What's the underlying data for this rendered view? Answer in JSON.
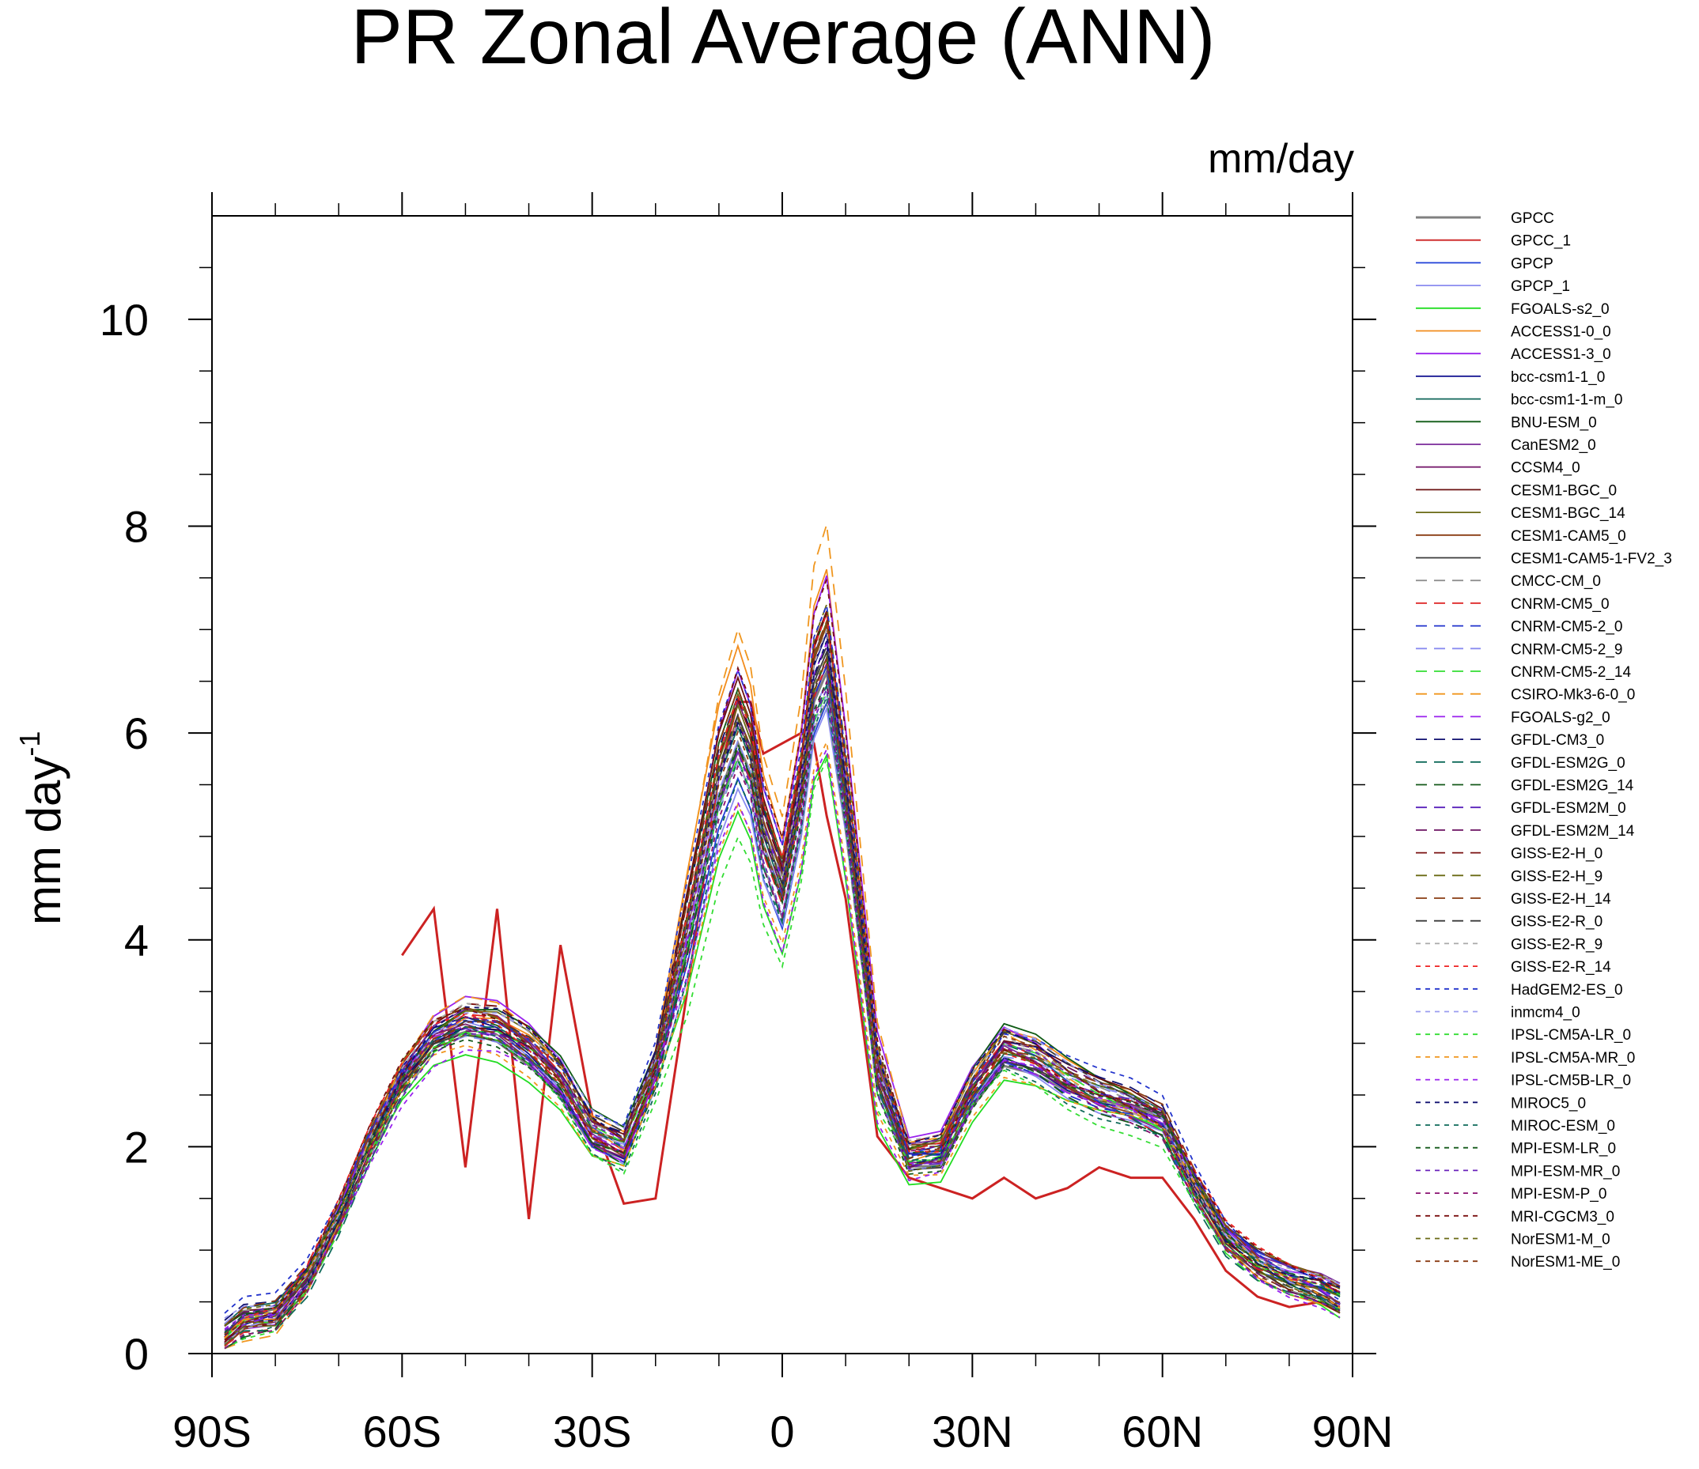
{
  "chart_data": {
    "type": "line",
    "title": "PR Zonal Average (ANN)",
    "units": "mm/day",
    "ylabel": "mm day",
    "ylabel_exponent": "-1",
    "xlabel": "",
    "xlim": [
      -90,
      90
    ],
    "ylim": [
      0,
      11
    ],
    "x_ticks": [
      {
        "value": -90,
        "label": "90S"
      },
      {
        "value": -60,
        "label": "60S"
      },
      {
        "value": -30,
        "label": "30S"
      },
      {
        "value": 0,
        "label": "0"
      },
      {
        "value": 30,
        "label": "30N"
      },
      {
        "value": 60,
        "label": "60N"
      },
      {
        "value": 90,
        "label": "90N"
      }
    ],
    "y_ticks": [
      {
        "value": 0,
        "label": "0"
      },
      {
        "value": 2,
        "label": "2"
      },
      {
        "value": 4,
        "label": "4"
      },
      {
        "value": 6,
        "label": "6"
      },
      {
        "value": 8,
        "label": "8"
      },
      {
        "value": 10,
        "label": "10"
      }
    ],
    "x": [
      -88,
      -85,
      -80,
      -75,
      -70,
      -65,
      -60,
      -55,
      -50,
      -45,
      -40,
      -35,
      -30,
      -25,
      -20,
      -15,
      -10,
      -7,
      -5,
      -3,
      0,
      3,
      5,
      7,
      10,
      15,
      20,
      25,
      30,
      35,
      40,
      45,
      50,
      55,
      60,
      65,
      70,
      75,
      80,
      85,
      88
    ],
    "base_series": [
      0.15,
      0.3,
      0.35,
      0.7,
      1.3,
      2.0,
      2.6,
      3.0,
      3.15,
      3.1,
      2.9,
      2.6,
      2.1,
      1.95,
      2.7,
      3.9,
      5.3,
      5.8,
      5.5,
      4.8,
      4.3,
      5.2,
      6.2,
      6.5,
      5.2,
      2.6,
      1.85,
      1.9,
      2.5,
      2.9,
      2.8,
      2.6,
      2.45,
      2.35,
      2.2,
      1.6,
      1.1,
      0.85,
      0.7,
      0.6,
      0.5
    ],
    "obs_gpcc_1": [
      null,
      null,
      null,
      null,
      null,
      null,
      3.85,
      4.3,
      1.8,
      4.3,
      1.3,
      3.95,
      2.3,
      1.45,
      1.5,
      3.5,
      5.6,
      6.3,
      6.3,
      5.8,
      5.9,
      6.0,
      5.9,
      5.2,
      4.4,
      2.1,
      1.7,
      1.6,
      1.5,
      1.7,
      1.5,
      1.6,
      1.8,
      1.7,
      1.7,
      1.3,
      0.8,
      0.55,
      0.45,
      0.5,
      0.45
    ],
    "series": [
      {
        "name": "GPCC",
        "color": "#808080",
        "dash": "solid",
        "scale": 1.0,
        "offset": 0.0
      },
      {
        "name": "GPCC_1",
        "color": "#cc2222",
        "dash": "solid",
        "scale": 1.0,
        "offset": 0.0
      },
      {
        "name": "GPCP",
        "color": "#1f3fd8",
        "dash": "solid",
        "scale": 0.97,
        "offset": 0.05
      },
      {
        "name": "GPCP_1",
        "color": "#8a8cf0",
        "dash": "solid",
        "scale": 0.93,
        "offset": 0.08
      },
      {
        "name": "FGOALS-s2_0",
        "color": "#22dd22",
        "dash": "solid",
        "scale": 0.9,
        "offset": -0.1
      },
      {
        "name": "ACCESS1-0_0",
        "color": "#f28c1d",
        "dash": "solid",
        "scale": 1.2,
        "offset": -0.1
      },
      {
        "name": "ACCESS1-3_0",
        "color": "#9a22ee",
        "dash": "solid",
        "scale": 1.15,
        "offset": 0.05
      },
      {
        "name": "bcc-csm1-1_0",
        "color": "#101090",
        "dash": "solid",
        "scale": 1.05,
        "offset": 0.02
      },
      {
        "name": "bcc-csm1-1-m_0",
        "color": "#11675a",
        "dash": "solid",
        "scale": 1.02,
        "offset": 0.04
      },
      {
        "name": "BNU-ESM_0",
        "color": "#0e5a14",
        "dash": "solid",
        "scale": 1.1,
        "offset": 0.12
      },
      {
        "name": "CanESM2_0",
        "color": "#7a2a9a",
        "dash": "solid",
        "scale": 1.0,
        "offset": 0.1
      },
      {
        "name": "CCSM4_0",
        "color": "#7a2070",
        "dash": "solid",
        "scale": 1.08,
        "offset": -0.05
      },
      {
        "name": "CESM1-BGC_0",
        "color": "#6a1010",
        "dash": "solid",
        "scale": 1.12,
        "offset": -0.02
      },
      {
        "name": "CESM1-BGC_14",
        "color": "#6a6a14",
        "dash": "solid",
        "scale": 1.1,
        "offset": 0.0
      },
      {
        "name": "CESM1-CAM5_0",
        "color": "#8a3c12",
        "dash": "solid",
        "scale": 1.06,
        "offset": 0.05
      },
      {
        "name": "CESM1-CAM5-1-FV2_3",
        "color": "#3a3a3a",
        "dash": "solid",
        "scale": 1.04,
        "offset": -0.03
      },
      {
        "name": "CMCC-CM_0",
        "color": "#909090",
        "dash": "long",
        "scale": 0.98,
        "offset": 0.06
      },
      {
        "name": "CNRM-CM5_0",
        "color": "#dd2222",
        "dash": "long",
        "scale": 1.03,
        "offset": 0.0
      },
      {
        "name": "CNRM-CM5-2_0",
        "color": "#2233cc",
        "dash": "long",
        "scale": 1.0,
        "offset": 0.03
      },
      {
        "name": "CNRM-CM5-2_9",
        "color": "#8a8cf0",
        "dash": "long",
        "scale": 0.99,
        "offset": 0.07
      },
      {
        "name": "CNRM-CM5-2_14",
        "color": "#33dd33",
        "dash": "long",
        "scale": 1.01,
        "offset": -0.04
      },
      {
        "name": "CSIRO-Mk3-6-0_0",
        "color": "#f0961e",
        "dash": "long",
        "scale": 1.25,
        "offset": -0.15
      },
      {
        "name": "FGOALS-g2_0",
        "color": "#9a22ee",
        "dash": "long",
        "scale": 1.05,
        "offset": -0.06
      },
      {
        "name": "GFDL-CM3_0",
        "color": "#101070",
        "dash": "long",
        "scale": 1.07,
        "offset": 0.08
      },
      {
        "name": "GFDL-ESM2G_0",
        "color": "#0f6a5a",
        "dash": "long",
        "scale": 1.02,
        "offset": -0.08
      },
      {
        "name": "GFDL-ESM2G_14",
        "color": "#145a1a",
        "dash": "long",
        "scale": 1.03,
        "offset": -0.06
      },
      {
        "name": "GFDL-ESM2M_0",
        "color": "#5a22bb",
        "dash": "long",
        "scale": 1.04,
        "offset": 0.02
      },
      {
        "name": "GFDL-ESM2M_14",
        "color": "#6a1060",
        "dash": "long",
        "scale": 1.05,
        "offset": 0.01
      },
      {
        "name": "GISS-E2-H_0",
        "color": "#7a1010",
        "dash": "long",
        "scale": 1.1,
        "offset": 0.06
      },
      {
        "name": "GISS-E2-H_9",
        "color": "#6a6a14",
        "dash": "long",
        "scale": 1.09,
        "offset": 0.04
      },
      {
        "name": "GISS-E2-H_14",
        "color": "#8a3c12",
        "dash": "long",
        "scale": 1.08,
        "offset": 0.05
      },
      {
        "name": "GISS-E2-R_0",
        "color": "#3a3a3a",
        "dash": "long",
        "scale": 1.06,
        "offset": 0.07
      },
      {
        "name": "GISS-E2-R_9",
        "color": "#aaaaaa",
        "dash": "short",
        "scale": 1.06,
        "offset": 0.09
      },
      {
        "name": "GISS-E2-R_14",
        "color": "#ee2222",
        "dash": "short",
        "scale": 1.07,
        "offset": 0.08
      },
      {
        "name": "HadGEM2-ES_0",
        "color": "#2233cc",
        "dash": "short",
        "scale": 1.09,
        "offset": 0.2
      },
      {
        "name": "inmcm4_0",
        "color": "#9a9cf0",
        "dash": "short",
        "scale": 0.95,
        "offset": 0.3
      },
      {
        "name": "IPSL-CM5A-LR_0",
        "color": "#33dd33",
        "dash": "short",
        "scale": 0.88,
        "offset": -0.05
      },
      {
        "name": "IPSL-CM5A-MR_0",
        "color": "#f0961e",
        "dash": "short",
        "scale": 0.9,
        "offset": -0.02
      },
      {
        "name": "IPSL-CM5B-LR_0",
        "color": "#9a22ee",
        "dash": "short",
        "scale": 0.92,
        "offset": -0.04
      },
      {
        "name": "MIROC5_0",
        "color": "#101070",
        "dash": "short",
        "scale": 1.05,
        "offset": 0.12
      },
      {
        "name": "MIROC-ESM_0",
        "color": "#0f6a5a",
        "dash": "short",
        "scale": 0.97,
        "offset": -0.07
      },
      {
        "name": "MPI-ESM-LR_0",
        "color": "#145a1a",
        "dash": "short",
        "scale": 1.0,
        "offset": -0.03
      },
      {
        "name": "MPI-ESM-MR_0",
        "color": "#6a22bb",
        "dash": "short",
        "scale": 1.01,
        "offset": -0.02
      },
      {
        "name": "MPI-ESM-P_0",
        "color": "#8a1070",
        "dash": "short",
        "scale": 1.0,
        "offset": -0.01
      },
      {
        "name": "MRI-CGCM3_0",
        "color": "#7a1010",
        "dash": "short",
        "scale": 1.13,
        "offset": 0.02
      },
      {
        "name": "NorESM1-M_0",
        "color": "#6a6a14",
        "dash": "short",
        "scale": 1.04,
        "offset": 0.01
      },
      {
        "name": "NorESM1-ME_0",
        "color": "#8a3c12",
        "dash": "short",
        "scale": 1.05,
        "offset": 0.0
      }
    ]
  }
}
